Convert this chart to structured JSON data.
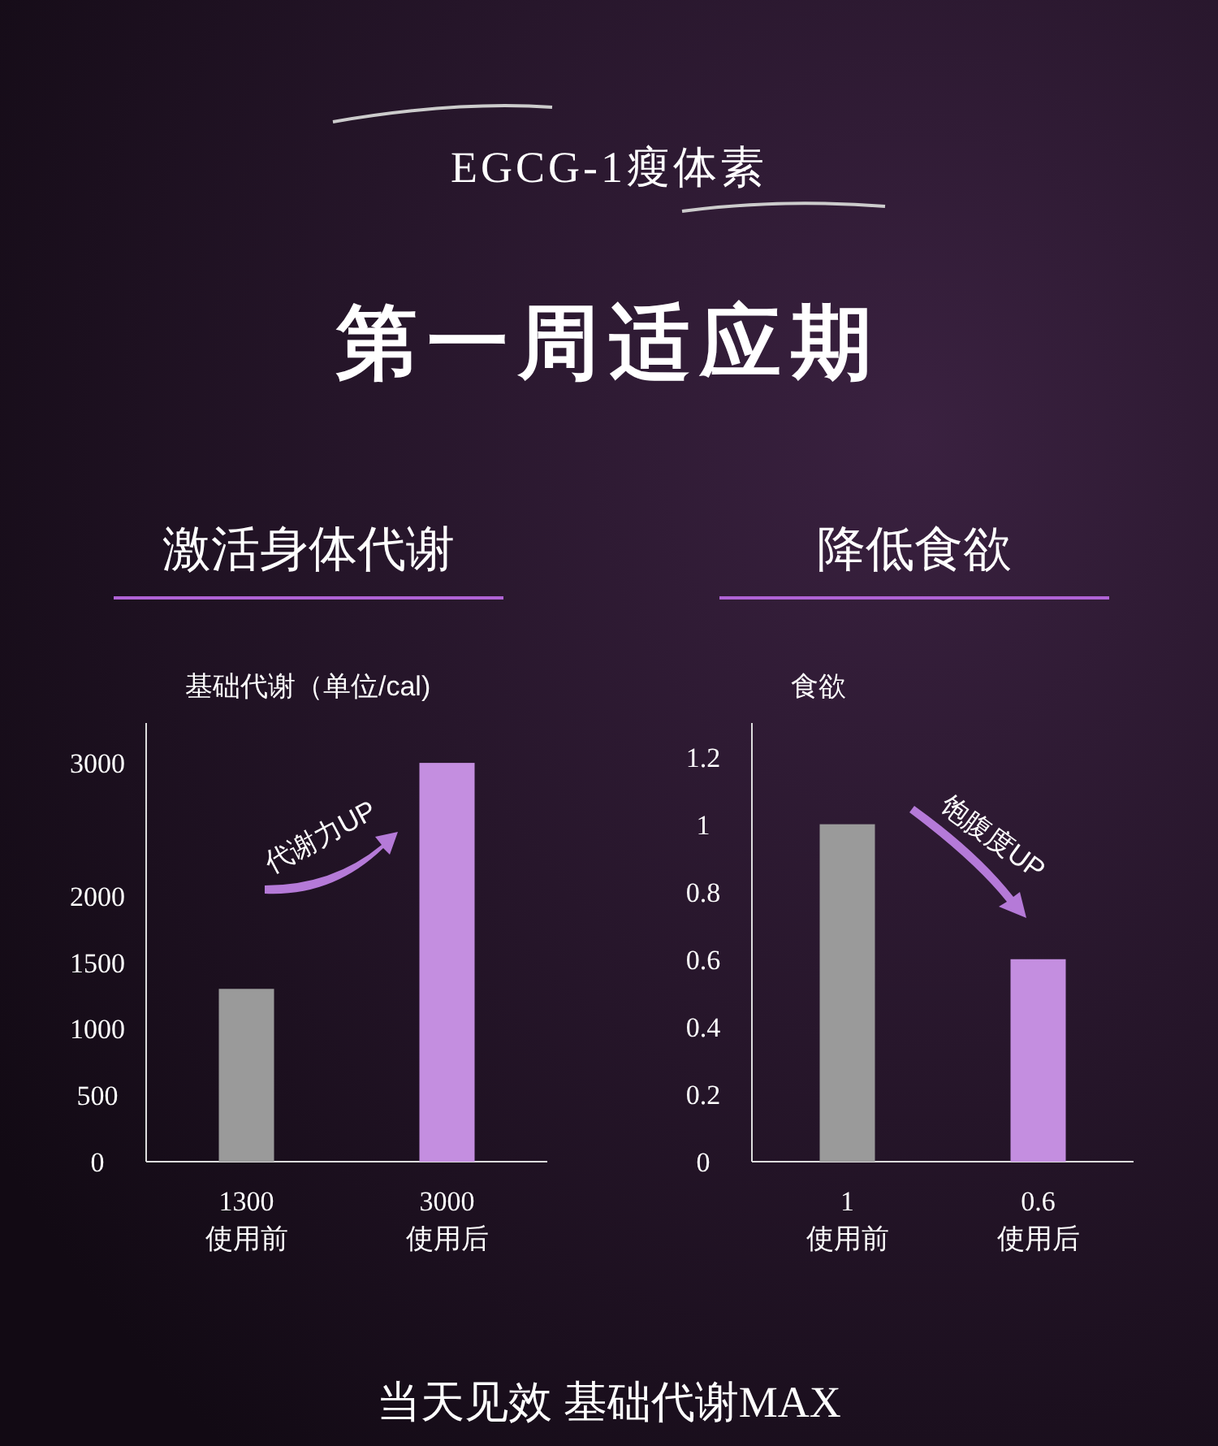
{
  "chart_data": [
    {
      "type": "other",
      "title": "EGCG-1瘦体素",
      "subtitle": "第一周适应期",
      "annotations": [
        "当天见效 基础代谢MAX"
      ]
    },
    {
      "type": "bar",
      "title": "激活身体代谢",
      "ylabel": "基础代谢（单位/cal)",
      "categories": [
        "使用前",
        "使用后"
      ],
      "values": [
        1300,
        3000
      ],
      "colors": [
        "#9a9a9a",
        "#c48ee0"
      ],
      "ylim": [
        0,
        3300
      ],
      "yticks": [
        0,
        500,
        1000,
        1500,
        2000,
        3000
      ],
      "data_labels": true,
      "annotations": [
        "代谢力UP"
      ]
    },
    {
      "type": "bar",
      "title": "降低食欲",
      "ylabel": "食欲",
      "categories": [
        "使用前",
        "使用后"
      ],
      "values": [
        1,
        0.6
      ],
      "colors": [
        "#9a9a9a",
        "#c48ee0"
      ],
      "ylim": [
        0,
        1.3
      ],
      "yticks": [
        0,
        0.2,
        0.4,
        0.6,
        0.8,
        1,
        1.2
      ],
      "data_labels": true,
      "annotations": [
        "饱腹度UP"
      ]
    }
  ]
}
